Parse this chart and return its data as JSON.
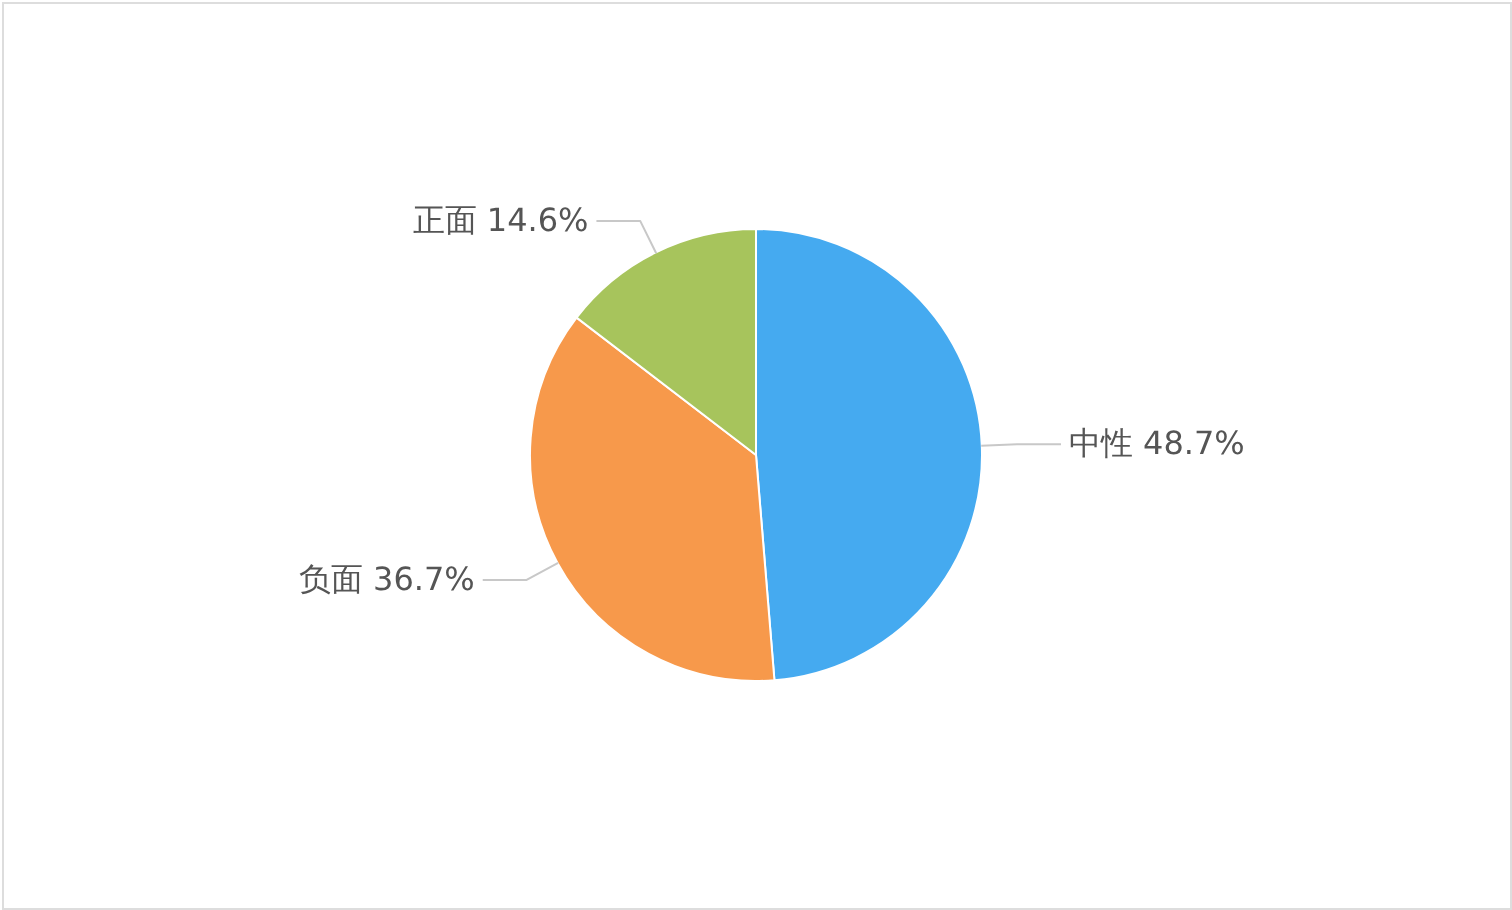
{
  "chart_data": {
    "type": "pie",
    "categories": [
      "中性",
      "负面",
      "正面"
    ],
    "values": [
      48.7,
      36.7,
      14.6
    ],
    "value_labels": [
      "48.7%",
      "36.7%",
      "14.6%"
    ],
    "colors": [
      "#45aaf0",
      "#f7994b",
      "#a7c45c"
    ]
  }
}
